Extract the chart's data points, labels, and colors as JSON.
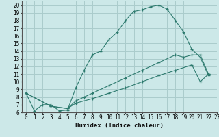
{
  "xlabel": "Humidex (Indice chaleur)",
  "background_color": "#cce8e8",
  "grid_color": "#aacccc",
  "line_color": "#2d7a6e",
  "xlim": [
    -0.5,
    23
  ],
  "ylim": [
    6,
    20.5
  ],
  "xticks": [
    0,
    1,
    2,
    3,
    4,
    5,
    6,
    7,
    8,
    9,
    10,
    11,
    12,
    13,
    14,
    15,
    16,
    17,
    18,
    19,
    20,
    21,
    22,
    23
  ],
  "yticks": [
    6,
    7,
    8,
    9,
    10,
    11,
    12,
    13,
    14,
    15,
    16,
    17,
    18,
    19,
    20
  ],
  "line1_x": [
    0,
    1,
    2,
    3,
    4,
    5,
    6,
    7,
    8,
    9,
    10,
    11,
    12,
    13,
    14,
    15,
    16,
    17,
    18,
    19,
    20,
    21,
    22
  ],
  "line1_y": [
    8.5,
    6.2,
    7.0,
    7.0,
    6.2,
    6.3,
    9.2,
    11.5,
    13.5,
    14.0,
    15.5,
    16.5,
    18.0,
    19.2,
    19.4,
    19.8,
    20.0,
    19.5,
    18.0,
    16.5,
    14.2,
    13.2,
    10.8
  ],
  "line2_x": [
    0,
    3,
    5,
    6,
    7,
    8,
    10,
    12,
    14,
    16,
    18,
    19,
    20,
    21,
    22
  ],
  "line2_y": [
    8.5,
    6.8,
    6.5,
    7.5,
    8.0,
    8.5,
    9.5,
    10.5,
    11.5,
    12.5,
    13.5,
    13.2,
    13.5,
    13.5,
    11.0
  ],
  "line3_x": [
    0,
    3,
    5,
    6,
    8,
    10,
    12,
    14,
    16,
    18,
    20,
    21,
    22
  ],
  "line3_y": [
    8.5,
    6.8,
    6.5,
    7.2,
    7.8,
    8.5,
    9.2,
    10.0,
    10.8,
    11.5,
    12.2,
    10.0,
    11.0
  ]
}
